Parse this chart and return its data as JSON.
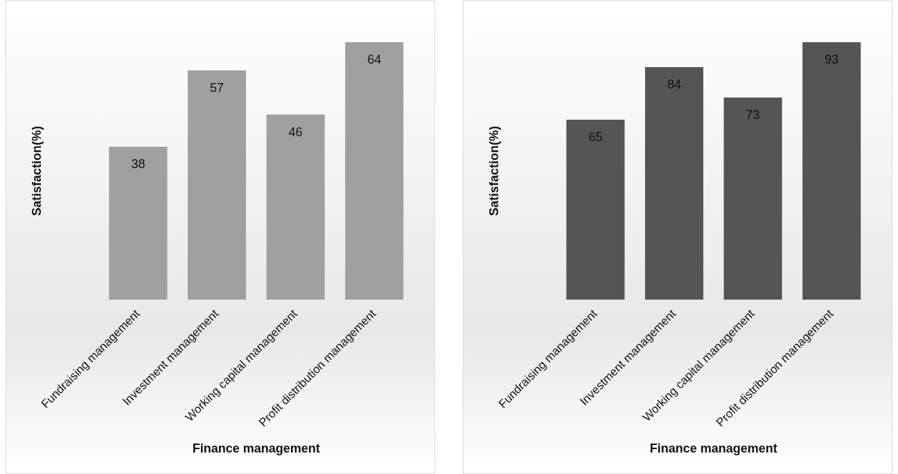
{
  "chart_data": [
    {
      "type": "bar",
      "categories": [
        "Fundraising management",
        "Investment management",
        "Working capital management",
        "Profit distribution management"
      ],
      "values": [
        38,
        57,
        46,
        64
      ],
      "color": "#a0a0a0",
      "xlabel": "Finance management",
      "ylabel": "Satisfaction(%)",
      "data_labels": true,
      "tick_labels": "x",
      "grid": false,
      "legend": false
    },
    {
      "type": "bar",
      "categories": [
        "Fundraising management",
        "Investment management",
        "Working capital management",
        "Profit distribution management"
      ],
      "values": [
        65,
        84,
        73,
        93
      ],
      "color": "#555555",
      "xlabel": "Finance management",
      "ylabel": "Satisfaction(%)",
      "data_labels": true,
      "tick_labels": "x",
      "grid": false,
      "legend": false
    }
  ]
}
